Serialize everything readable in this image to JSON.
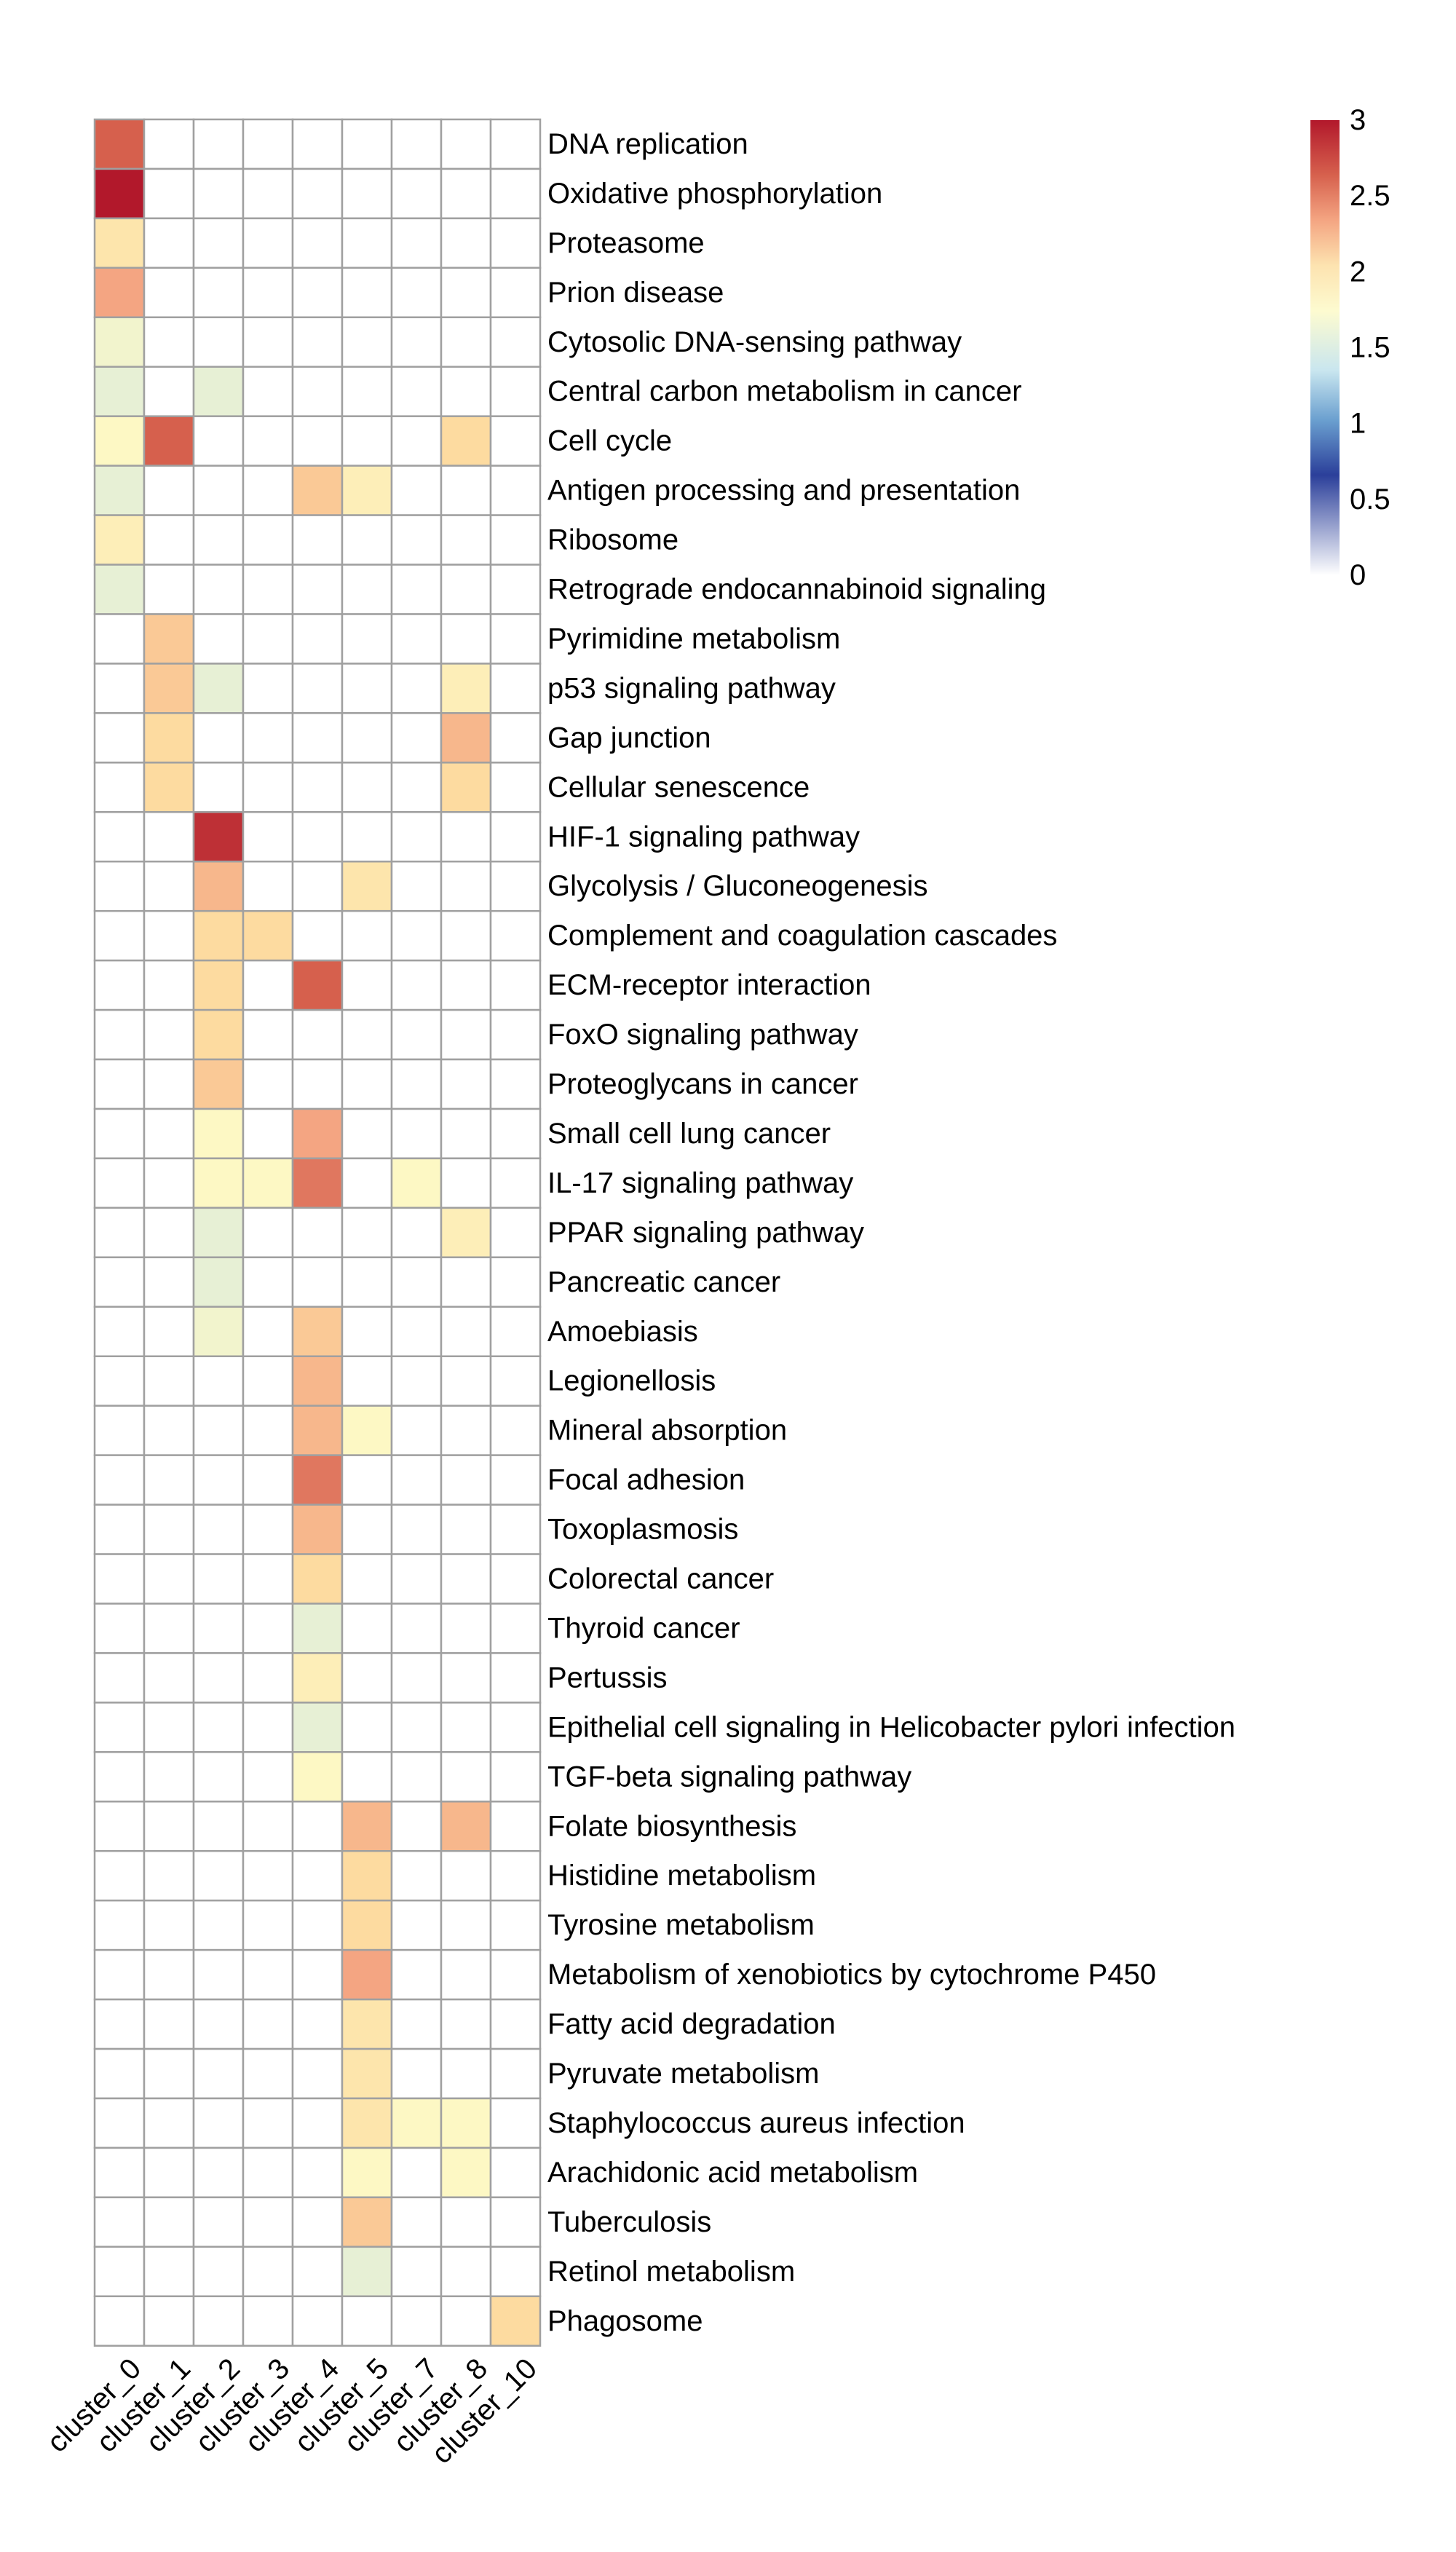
{
  "chart_data": {
    "type": "heatmap",
    "title": "",
    "xlabel": "",
    "ylabel": "",
    "columns": [
      "cluster_0",
      "cluster_1",
      "cluster_2",
      "cluster_3",
      "cluster_4",
      "cluster_5",
      "cluster_7",
      "cluster_8",
      "cluster_10"
    ],
    "rows": [
      "DNA replication",
      "Oxidative phosphorylation",
      "Proteasome",
      "Prion disease",
      "Cytosolic DNA-sensing pathway",
      "Central carbon metabolism in cancer",
      "Cell cycle",
      "Antigen processing and presentation",
      "Ribosome",
      "Retrograde endocannabinoid signaling",
      "Pyrimidine metabolism",
      "p53 signaling pathway",
      "Gap junction",
      "Cellular senescence",
      "HIF-1 signaling pathway",
      "Glycolysis / Gluconeogenesis",
      "Complement and coagulation cascades",
      "ECM-receptor interaction",
      "FoxO signaling pathway",
      "Proteoglycans in cancer",
      "Small cell lung cancer",
      "IL-17 signaling pathway",
      "PPAR signaling pathway",
      "Pancreatic cancer",
      "Amoebiasis",
      "Legionellosis",
      "Mineral absorption",
      "Focal adhesion",
      "Toxoplasmosis",
      "Colorectal cancer",
      "Thyroid cancer",
      "Pertussis",
      "Epithelial cell signaling in Helicobacter pylori infection",
      "TGF-beta signaling pathway",
      "Folate biosynthesis",
      "Histidine metabolism",
      "Tyrosine metabolism",
      "Metabolism of xenobiotics by cytochrome P450",
      "Fatty acid degradation",
      "Pyruvate metabolism",
      "Staphylococcus aureus infection",
      "Arachidonic acid metabolism",
      "Tuberculosis",
      "Retinol metabolism",
      "Phagosome"
    ],
    "values": [
      [
        2.7,
        0,
        0,
        0,
        0,
        0,
        0,
        0,
        0
      ],
      [
        3.0,
        0,
        0,
        0,
        0,
        0,
        0,
        0,
        0
      ],
      [
        2.0,
        0,
        0,
        0,
        0,
        0,
        0,
        0,
        0
      ],
      [
        2.4,
        0,
        0,
        0,
        0,
        0,
        0,
        0,
        0
      ],
      [
        1.7,
        0,
        0,
        0,
        0,
        0,
        0,
        0,
        0
      ],
      [
        1.6,
        0,
        1.6,
        0,
        0,
        0,
        0,
        0,
        0
      ],
      [
        1.8,
        2.7,
        0,
        0,
        0,
        0,
        0,
        2.1,
        0
      ],
      [
        1.6,
        0,
        0,
        0,
        2.2,
        1.9,
        0,
        0,
        0
      ],
      [
        1.9,
        0,
        0,
        0,
        0,
        0,
        0,
        0,
        0
      ],
      [
        1.6,
        0,
        0,
        0,
        0,
        0,
        0,
        0,
        0
      ],
      [
        0,
        2.2,
        0,
        0,
        0,
        0,
        0,
        0,
        0
      ],
      [
        0,
        2.2,
        1.6,
        0,
        0,
        0,
        0,
        1.9,
        0
      ],
      [
        0,
        2.1,
        0,
        0,
        0,
        0,
        0,
        2.3,
        0
      ],
      [
        0,
        2.1,
        0,
        0,
        0,
        0,
        0,
        2.1,
        0
      ],
      [
        0,
        0,
        2.9,
        0,
        0,
        0,
        0,
        0,
        0
      ],
      [
        0,
        0,
        2.3,
        0,
        0,
        2.0,
        0,
        0,
        0
      ],
      [
        0,
        0,
        2.1,
        2.1,
        0,
        0,
        0,
        0,
        0
      ],
      [
        0,
        0,
        2.1,
        0,
        2.7,
        0,
        0,
        0,
        0
      ],
      [
        0,
        0,
        2.1,
        0,
        0,
        0,
        0,
        0,
        0
      ],
      [
        0,
        0,
        2.2,
        0,
        0,
        0,
        0,
        0,
        0
      ],
      [
        0,
        0,
        1.8,
        0,
        2.4,
        0,
        0,
        0,
        0
      ],
      [
        0,
        0,
        1.8,
        1.8,
        2.6,
        0,
        1.8,
        0,
        0
      ],
      [
        0,
        0,
        1.6,
        0,
        0,
        0,
        0,
        1.9,
        0
      ],
      [
        0,
        0,
        1.6,
        0,
        0,
        0,
        0,
        0,
        0
      ],
      [
        0,
        0,
        1.7,
        0,
        2.2,
        0,
        0,
        0,
        0
      ],
      [
        0,
        0,
        0,
        0,
        2.3,
        0,
        0,
        0,
        0
      ],
      [
        0,
        0,
        0,
        0,
        2.3,
        1.8,
        0,
        0,
        0
      ],
      [
        0,
        0,
        0,
        0,
        2.6,
        0,
        0,
        0,
        0
      ],
      [
        0,
        0,
        0,
        0,
        2.3,
        0,
        0,
        0,
        0
      ],
      [
        0,
        0,
        0,
        0,
        2.1,
        0,
        0,
        0,
        0
      ],
      [
        0,
        0,
        0,
        0,
        1.6,
        0,
        0,
        0,
        0
      ],
      [
        0,
        0,
        0,
        0,
        1.9,
        0,
        0,
        0,
        0
      ],
      [
        0,
        0,
        0,
        0,
        1.6,
        0,
        0,
        0,
        0
      ],
      [
        0,
        0,
        0,
        0,
        1.8,
        0,
        0,
        0,
        0
      ],
      [
        0,
        0,
        0,
        0,
        0,
        2.3,
        0,
        2.3,
        0
      ],
      [
        0,
        0,
        0,
        0,
        0,
        2.1,
        0,
        0,
        0
      ],
      [
        0,
        0,
        0,
        0,
        0,
        2.1,
        0,
        0,
        0
      ],
      [
        0,
        0,
        0,
        0,
        0,
        2.4,
        0,
        0,
        0
      ],
      [
        0,
        0,
        0,
        0,
        0,
        2.0,
        0,
        0,
        0
      ],
      [
        0,
        0,
        0,
        0,
        0,
        2.0,
        0,
        0,
        0
      ],
      [
        0,
        0,
        0,
        0,
        0,
        2.0,
        1.8,
        1.8,
        0
      ],
      [
        0,
        0,
        0,
        0,
        0,
        1.8,
        0,
        1.8,
        0
      ],
      [
        0,
        0,
        0,
        0,
        0,
        2.2,
        0,
        0,
        0
      ],
      [
        0,
        0,
        0,
        0,
        0,
        1.6,
        0,
        0,
        0
      ],
      [
        0,
        0,
        0,
        0,
        0,
        0,
        0,
        0,
        2.1
      ]
    ],
    "colorbar": {
      "range": [
        0,
        3
      ],
      "ticks": [
        "3",
        "2.5",
        "2",
        "1.5",
        "1",
        "0.5",
        "0"
      ],
      "gradient_colors": [
        "#b2182b",
        "#d6604d",
        "#f4a582",
        "#fddbc7",
        "#fffbd0",
        "#d1e5f0",
        "#4393c3",
        "#2166ac",
        "#ffffff"
      ]
    },
    "grid": true,
    "legend_position": "top-right",
    "colors": {
      "grid_line": "#a0a0a0",
      "empty_cell": "#ffffff"
    }
  }
}
